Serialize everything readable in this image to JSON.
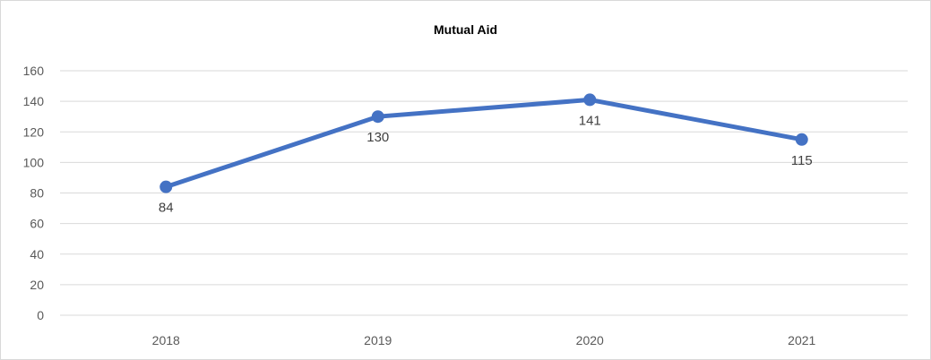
{
  "chart_data": {
    "type": "line",
    "title": "Mutual Aid",
    "categories": [
      "2018",
      "2019",
      "2020",
      "2021"
    ],
    "series": [
      {
        "values": [
          84,
          130,
          141,
          115
        ]
      }
    ],
    "ylim": [
      0,
      160
    ],
    "yticks": [
      0,
      20,
      40,
      60,
      80,
      100,
      120,
      140,
      160
    ],
    "grid": true,
    "legend": "none",
    "colors": {
      "line": "#4472c4",
      "grid": "#d9d9d9",
      "tick_text": "#595959",
      "label_text": "#404040"
    }
  }
}
